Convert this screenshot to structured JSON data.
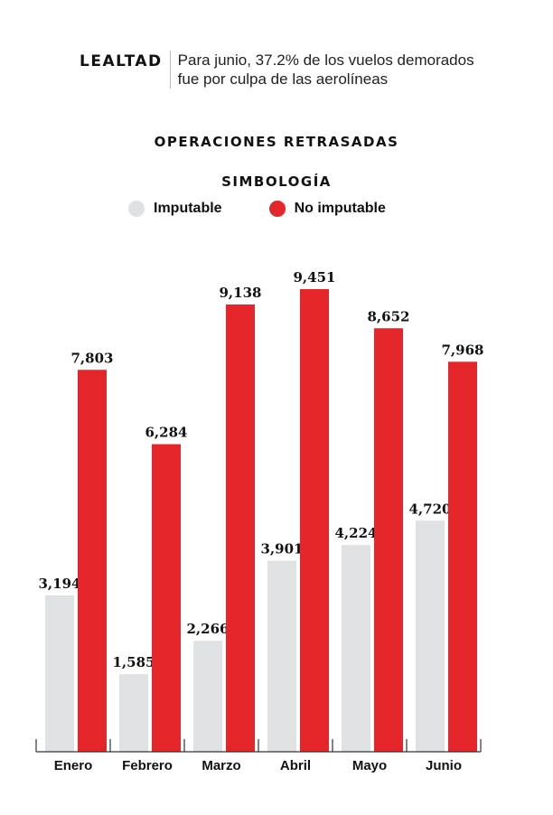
{
  "header": {
    "kicker": "LEALTAD",
    "subtitle": "Para junio, 37.2% de los vuelos demorados fue por culpa de las aerolíneas"
  },
  "chart_data": {
    "type": "bar",
    "title": "OPERACIONES RETRASADAS",
    "legend_title": "SIMBOLOGÍA",
    "legend_placement": "top",
    "grid": false,
    "categories": [
      "Enero",
      "Febrero",
      "Marzo",
      "Abril",
      "Mayo",
      "Junio"
    ],
    "series": [
      {
        "name": "Imputable",
        "color": "#e0e1e3",
        "values": [
          3194,
          1585,
          2266,
          3901,
          4224,
          4720
        ]
      },
      {
        "name": "No imputable",
        "color": "#e4262a",
        "values": [
          7803,
          6284,
          9138,
          9451,
          8652,
          7968
        ]
      }
    ],
    "ylim": [
      0,
      9451
    ]
  }
}
